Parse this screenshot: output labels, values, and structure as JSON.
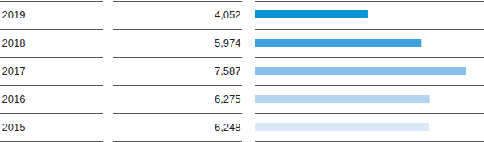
{
  "chart_data": {
    "type": "bar",
    "orientation": "horizontal",
    "categories": [
      "2019",
      "2018",
      "2017",
      "2016",
      "2015"
    ],
    "values": [
      4052,
      5974,
      7587,
      6275,
      6248
    ],
    "value_labels": [
      "4,052",
      "5,974",
      "7,587",
      "6,275",
      "6,248"
    ],
    "colors": [
      "#0a95d6",
      "#3ea2dc",
      "#88c2ea",
      "#b4d4ef",
      "#dbe8f6"
    ],
    "data_labels": true,
    "tick_labels": false,
    "grid": false
  }
}
